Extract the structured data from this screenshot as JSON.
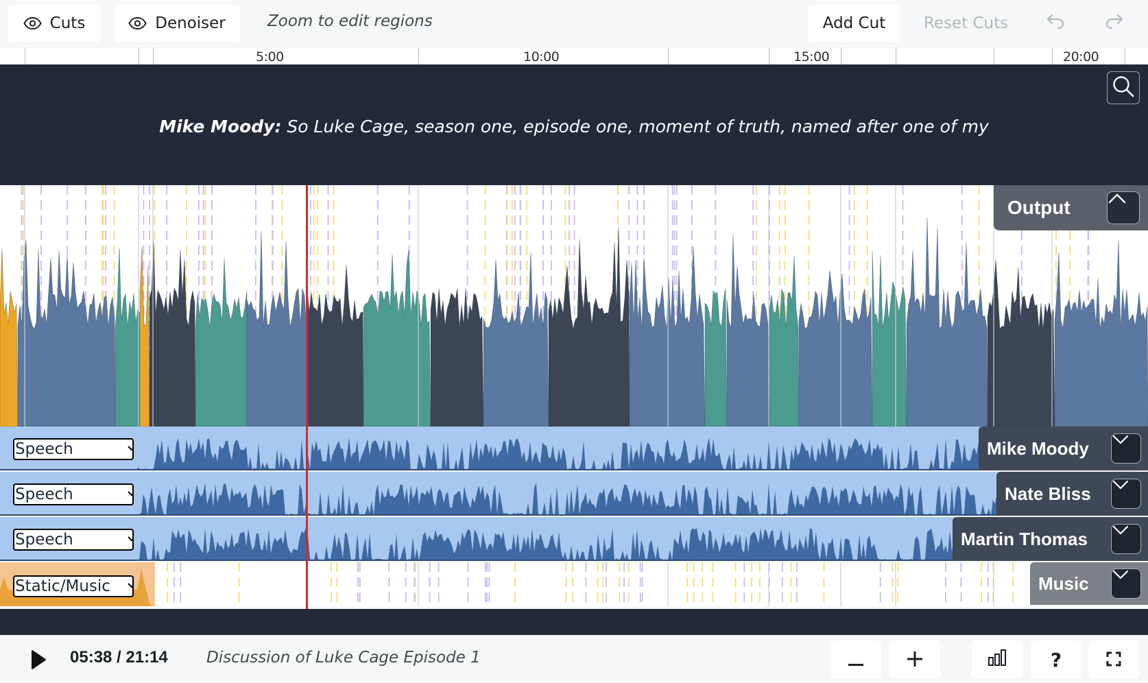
{
  "toolbar": {
    "cuts_label": "Cuts",
    "denoiser_label": "Denoiser",
    "hint": "Zoom to edit regions",
    "add_cut_label": "Add Cut",
    "reset_cuts_label": "Reset Cuts",
    "undo_icon": "undo-icon",
    "redo_icon": "redo-icon"
  },
  "ruler": {
    "labels": [
      "5:00",
      "10:00",
      "15:00",
      "20:00"
    ]
  },
  "transcript": {
    "speaker": "Mike Moody:",
    "text": " So Luke Cage, season one, episode one, moment of truth, named after one of my"
  },
  "output": {
    "label": "Output"
  },
  "tracks": [
    {
      "name": "Mike Moody",
      "type": "Speech"
    },
    {
      "name": "Nate Bliss",
      "type": "Speech"
    },
    {
      "name": "Martin Thomas",
      "type": "Speech"
    },
    {
      "name": "Music",
      "type": "Static/Music"
    }
  ],
  "colors": {
    "banner": "#222a38",
    "playhead": "#d42a2a",
    "speech_track_bg": "#a9c8ef",
    "speech_wave": "#3f69a2",
    "music_wave": "#e8a23a",
    "output_blue": "#5b78a0",
    "output_teal": "#4c9b8f",
    "output_dark": "#3b4554",
    "output_orange": "#eca627"
  },
  "transport": {
    "time": "05:38 / 21:14",
    "title": "Discussion of Luke Cage Episode 1",
    "zoom_out_icon": "minus-icon",
    "zoom_in_icon": "plus-icon",
    "stats_icon": "bar-chart-icon",
    "help_label": "?",
    "fullscreen_icon": "fullscreen-icon"
  }
}
